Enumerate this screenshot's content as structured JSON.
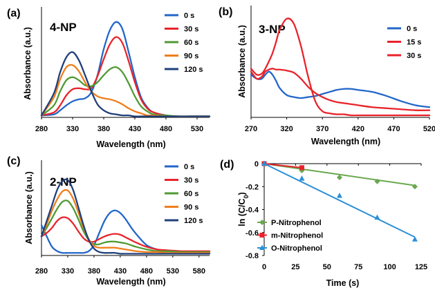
{
  "colors": {
    "0 s": "#2166c9",
    "30 s": "#e8232b",
    "15 s": "#e8232b",
    "60 s": "#4f9a32",
    "90 s": "#f07d1b",
    "120 s": "#1f3f7a",
    "P-Nitrophenol": "#6aa84f",
    "m-Nitrophenol": "#e8232b",
    "O-Nitrophenol": "#2a8fd8"
  },
  "chart_data": [
    {
      "panel": "(a)",
      "type": "line",
      "title": "4-NP",
      "xlabel": "Wavelength (nm)",
      "ylabel": "Absorbance (a.u.)",
      "xlim": [
        280,
        550
      ],
      "ylim": [
        0,
        1.1
      ],
      "xticks": [
        "280",
        "330",
        "380",
        "430",
        "480",
        "530"
      ],
      "yticks": [],
      "grid": false,
      "legend_position": "top-right",
      "series": [
        {
          "name": "0 s",
          "x": [
            280,
            300,
            310,
            320,
            330,
            340,
            350,
            360,
            370,
            380,
            390,
            400,
            410,
            420,
            430,
            440,
            450,
            460,
            480,
            500,
            520,
            550
          ],
          "values": [
            0.02,
            0.03,
            0.07,
            0.12,
            0.16,
            0.18,
            0.19,
            0.25,
            0.42,
            0.68,
            0.87,
            0.95,
            0.88,
            0.65,
            0.4,
            0.2,
            0.1,
            0.05,
            0.02,
            0.01,
            0.01,
            0.01
          ]
        },
        {
          "name": "30 s",
          "x": [
            280,
            300,
            310,
            320,
            330,
            340,
            350,
            360,
            370,
            380,
            390,
            400,
            410,
            420,
            430,
            440,
            450,
            460,
            480,
            500,
            520,
            550
          ],
          "values": [
            0.02,
            0.05,
            0.12,
            0.22,
            0.28,
            0.29,
            0.28,
            0.29,
            0.41,
            0.58,
            0.73,
            0.8,
            0.74,
            0.56,
            0.35,
            0.18,
            0.09,
            0.05,
            0.02,
            0.01,
            0.01,
            0.01
          ]
        },
        {
          "name": "60 s",
          "x": [
            280,
            300,
            310,
            320,
            330,
            340,
            350,
            360,
            370,
            380,
            390,
            400,
            410,
            420,
            430,
            440,
            450,
            460,
            480,
            500,
            520,
            550
          ],
          "values": [
            0.02,
            0.12,
            0.26,
            0.37,
            0.4,
            0.37,
            0.32,
            0.31,
            0.35,
            0.42,
            0.48,
            0.5,
            0.45,
            0.34,
            0.21,
            0.11,
            0.06,
            0.03,
            0.02,
            0.01,
            0.01,
            0.01
          ]
        },
        {
          "name": "90 s",
          "x": [
            280,
            300,
            310,
            320,
            330,
            340,
            350,
            360,
            370,
            380,
            390,
            400,
            410,
            420,
            430,
            440,
            450,
            460,
            480,
            500,
            520,
            550
          ],
          "values": [
            0.02,
            0.2,
            0.38,
            0.5,
            0.52,
            0.46,
            0.35,
            0.26,
            0.21,
            0.19,
            0.18,
            0.16,
            0.13,
            0.09,
            0.06,
            0.04,
            0.02,
            0.02,
            0.01,
            0.01,
            0.01,
            0.01
          ]
        },
        {
          "name": "120 s",
          "x": [
            280,
            300,
            310,
            320,
            330,
            340,
            350,
            360,
            370,
            380,
            390,
            400,
            410,
            420,
            430,
            440,
            450,
            460,
            480,
            500,
            520,
            550
          ],
          "values": [
            0.02,
            0.24,
            0.45,
            0.6,
            0.65,
            0.57,
            0.42,
            0.26,
            0.13,
            0.07,
            0.04,
            0.03,
            0.02,
            0.02,
            0.01,
            0.01,
            0.01,
            0.01,
            0.01,
            0.01,
            0.01,
            0.01
          ]
        }
      ]
    },
    {
      "panel": "(b)",
      "type": "line",
      "title": "3-NP",
      "xlabel": "Wavelength (nm)",
      "ylabel": "Absorbance (a.u.)",
      "xlim": [
        270,
        520
      ],
      "ylim": [
        0,
        1.1
      ],
      "xticks": [
        "270",
        "320",
        "370",
        "420",
        "470",
        "520"
      ],
      "yticks": [],
      "grid": false,
      "legend_position": "top-right",
      "series": [
        {
          "name": "0 s",
          "x": [
            270,
            278,
            285,
            290,
            295,
            300,
            305,
            310,
            320,
            330,
            340,
            350,
            360,
            370,
            380,
            390,
            400,
            410,
            420,
            440,
            460,
            480,
            500,
            520
          ],
          "values": [
            0.42,
            0.38,
            0.38,
            0.42,
            0.45,
            0.42,
            0.36,
            0.29,
            0.22,
            0.2,
            0.19,
            0.2,
            0.21,
            0.23,
            0.25,
            0.27,
            0.28,
            0.28,
            0.27,
            0.25,
            0.21,
            0.16,
            0.12,
            0.1
          ]
        },
        {
          "name": "15 s",
          "x": [
            270,
            278,
            285,
            290,
            295,
            300,
            305,
            310,
            320,
            330,
            340,
            350,
            360,
            370,
            380,
            390,
            400,
            410,
            420,
            440,
            460,
            480,
            500,
            520
          ],
          "values": [
            0.45,
            0.38,
            0.4,
            0.45,
            0.47,
            0.48,
            0.47,
            0.47,
            0.46,
            0.44,
            0.38,
            0.3,
            0.24,
            0.2,
            0.17,
            0.15,
            0.14,
            0.13,
            0.12,
            0.1,
            0.09,
            0.08,
            0.07,
            0.07
          ]
        },
        {
          "name": "30 s",
          "x": [
            270,
            278,
            285,
            290,
            295,
            300,
            305,
            310,
            320,
            330,
            340,
            350,
            360,
            370,
            380,
            390,
            400,
            410,
            420,
            440,
            460,
            480,
            500,
            520
          ],
          "values": [
            0.48,
            0.42,
            0.43,
            0.48,
            0.55,
            0.63,
            0.74,
            0.86,
            0.97,
            0.92,
            0.7,
            0.4,
            0.16,
            0.06,
            0.04,
            0.03,
            0.03,
            0.02,
            0.02,
            0.02,
            0.02,
            0.02,
            0.02,
            0.02
          ]
        }
      ]
    },
    {
      "panel": "(c)",
      "type": "line",
      "title": "2-NP",
      "xlabel": "Wavelength (nm)",
      "ylabel": "Absorbance (a.u.)",
      "xlim": [
        280,
        600
      ],
      "ylim": [
        0,
        1.1
      ],
      "xticks": [
        "280",
        "330",
        "380",
        "430",
        "480",
        "530",
        "580"
      ],
      "yticks": [],
      "grid": false,
      "legend_position": "top-right",
      "series": [
        {
          "name": "0 s",
          "x": [
            280,
            290,
            300,
            310,
            320,
            330,
            340,
            350,
            360,
            370,
            380,
            390,
            400,
            410,
            420,
            430,
            440,
            450,
            460,
            480,
            500,
            520,
            550,
            580,
            600
          ],
          "values": [
            0.35,
            0.22,
            0.1,
            0.05,
            0.03,
            0.03,
            0.03,
            0.03,
            0.03,
            0.05,
            0.12,
            0.26,
            0.4,
            0.49,
            0.52,
            0.49,
            0.42,
            0.33,
            0.25,
            0.12,
            0.07,
            0.05,
            0.04,
            0.04,
            0.04
          ]
        },
        {
          "name": "30 s",
          "x": [
            280,
            290,
            300,
            310,
            320,
            330,
            340,
            350,
            360,
            370,
            380,
            390,
            400,
            410,
            420,
            430,
            440,
            450,
            460,
            480,
            500,
            520,
            550,
            580,
            600
          ],
          "values": [
            0.22,
            0.26,
            0.32,
            0.4,
            0.44,
            0.43,
            0.37,
            0.28,
            0.2,
            0.16,
            0.16,
            0.19,
            0.22,
            0.24,
            0.25,
            0.24,
            0.21,
            0.18,
            0.15,
            0.1,
            0.07,
            0.06,
            0.05,
            0.05,
            0.05
          ]
        },
        {
          "name": "60 s",
          "x": [
            280,
            290,
            300,
            310,
            320,
            330,
            340,
            350,
            360,
            370,
            380,
            390,
            400,
            410,
            420,
            430,
            440,
            450,
            460,
            480,
            500,
            520,
            550,
            580,
            600
          ],
          "values": [
            0.22,
            0.32,
            0.43,
            0.54,
            0.62,
            0.63,
            0.55,
            0.42,
            0.28,
            0.18,
            0.13,
            0.13,
            0.15,
            0.16,
            0.16,
            0.15,
            0.14,
            0.12,
            0.1,
            0.07,
            0.05,
            0.05,
            0.04,
            0.04,
            0.04
          ]
        },
        {
          "name": "90 s",
          "x": [
            280,
            290,
            300,
            310,
            320,
            330,
            340,
            350,
            360,
            370,
            380,
            390,
            400,
            410,
            420,
            430,
            440,
            450,
            460,
            480,
            500,
            520,
            550,
            580,
            600
          ],
          "values": [
            0.22,
            0.36,
            0.52,
            0.65,
            0.74,
            0.75,
            0.66,
            0.5,
            0.32,
            0.19,
            0.11,
            0.09,
            0.09,
            0.09,
            0.09,
            0.08,
            0.07,
            0.06,
            0.05,
            0.04,
            0.04,
            0.03,
            0.03,
            0.03,
            0.03
          ]
        },
        {
          "name": "120 s",
          "x": [
            280,
            290,
            300,
            310,
            320,
            330,
            340,
            350,
            360,
            370,
            380,
            390,
            400,
            410,
            420,
            430,
            440,
            450,
            460,
            480,
            500,
            520,
            550,
            580,
            600
          ],
          "values": [
            0.22,
            0.4,
            0.58,
            0.76,
            0.86,
            0.87,
            0.76,
            0.56,
            0.35,
            0.18,
            0.08,
            0.04,
            0.03,
            0.03,
            0.03,
            0.02,
            0.02,
            0.02,
            0.02,
            0.02,
            0.02,
            0.02,
            0.02,
            0.02,
            0.02
          ]
        }
      ]
    },
    {
      "panel": "(d)",
      "type": "scatter",
      "title": "",
      "xlabel": "Time (s)",
      "ylabel": "ln (C/C",
      "ylabel_sub": "0",
      "ylabel_end": ")",
      "xlim": [
        0,
        125
      ],
      "ylim": [
        -0.8,
        0
      ],
      "xticks": [
        "0",
        "25",
        "50",
        "75",
        "100",
        "125"
      ],
      "yticks": [
        "0",
        "-0.2",
        "-0.4",
        "-0.6",
        "-0.8"
      ],
      "grid": false,
      "legend_position": "bottom-left",
      "series": [
        {
          "name": "P-Nitrophenol",
          "marker": "diamond",
          "x": [
            0,
            30,
            60,
            90,
            120
          ],
          "values": [
            0,
            -0.06,
            -0.12,
            -0.155,
            -0.2
          ],
          "fit": [
            [
              0,
              0
            ],
            [
              120,
              -0.19
            ]
          ]
        },
        {
          "name": "m-Nitrophenol",
          "marker": "square",
          "x": [
            0,
            30
          ],
          "values": [
            0,
            -0.035
          ],
          "fit": [
            [
              0,
              0
            ],
            [
              30,
              -0.035
            ]
          ]
        },
        {
          "name": "O-Nitrophenol",
          "marker": "triangle",
          "x": [
            0,
            30,
            60,
            90,
            120
          ],
          "values": [
            0,
            -0.13,
            -0.28,
            -0.47,
            -0.66
          ],
          "fit": [
            [
              0,
              0
            ],
            [
              120,
              -0.64
            ]
          ]
        }
      ]
    }
  ]
}
